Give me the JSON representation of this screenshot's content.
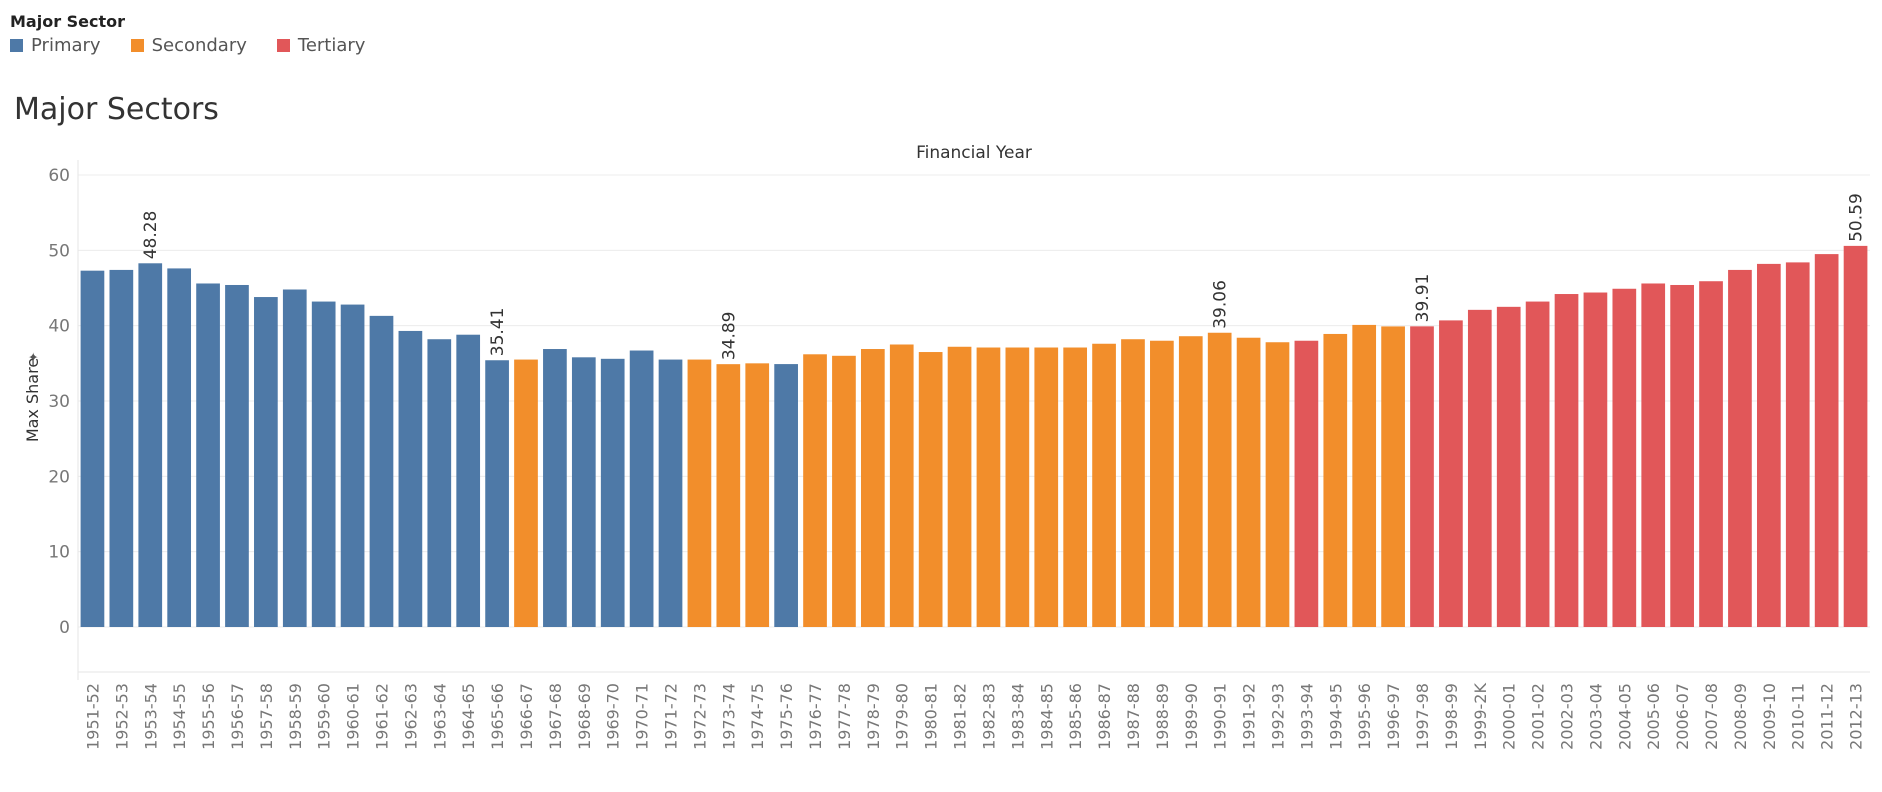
{
  "legend": {
    "title": "Major Sector",
    "items": [
      {
        "label": "Primary",
        "color": "#4e79a7"
      },
      {
        "label": "Secondary",
        "color": "#f28e2b"
      },
      {
        "label": "Tertiary",
        "color": "#e15759"
      }
    ]
  },
  "chart_title": "Major Sectors",
  "chart_data": {
    "type": "bar",
    "title": "Major Sectors",
    "xlabel": "Financial Year",
    "ylabel": "Max Share",
    "ylim": [
      0,
      60
    ],
    "yticks": [
      0,
      10,
      20,
      30,
      40,
      50,
      60
    ],
    "grid": true,
    "legend_position": "top-left",
    "categories": [
      "1951-52",
      "1952-53",
      "1953-54",
      "1954-55",
      "1955-56",
      "1956-57",
      "1957-58",
      "1958-59",
      "1959-60",
      "1960-61",
      "1961-62",
      "1962-63",
      "1963-64",
      "1964-65",
      "1965-66",
      "1966-67",
      "1967-68",
      "1968-69",
      "1969-70",
      "1970-71",
      "1971-72",
      "1972-73",
      "1973-74",
      "1974-75",
      "1975-76",
      "1976-77",
      "1977-78",
      "1978-79",
      "1979-80",
      "1980-81",
      "1981-82",
      "1982-83",
      "1983-84",
      "1984-85",
      "1985-86",
      "1986-87",
      "1987-88",
      "1988-89",
      "1989-90",
      "1990-91",
      "1991-92",
      "1992-93",
      "1993-94",
      "1994-95",
      "1995-96",
      "1996-97",
      "1997-98",
      "1998-99",
      "1999-2K",
      "2000-01",
      "2001-02",
      "2002-03",
      "2003-04",
      "2004-05",
      "2005-06",
      "2006-07",
      "2007-08",
      "2008-09",
      "2009-10",
      "2010-11",
      "2011-12",
      "2012-13"
    ],
    "values": [
      47.3,
      47.4,
      48.28,
      47.6,
      45.6,
      45.4,
      43.8,
      44.8,
      43.2,
      42.8,
      41.3,
      39.3,
      38.2,
      38.8,
      35.41,
      35.5,
      36.9,
      35.8,
      35.6,
      36.7,
      35.5,
      35.5,
      34.89,
      35.0,
      34.9,
      36.2,
      36.0,
      36.9,
      37.5,
      36.5,
      37.2,
      37.1,
      37.1,
      37.1,
      37.1,
      37.6,
      38.2,
      38.0,
      38.6,
      39.06,
      38.4,
      37.8,
      38.0,
      38.9,
      40.1,
      39.9,
      39.91,
      40.7,
      42.1,
      42.5,
      43.2,
      44.2,
      44.4,
      44.9,
      45.6,
      45.4,
      45.9,
      47.4,
      48.2,
      48.4,
      49.5,
      50.59
    ],
    "sectors": [
      "Primary",
      "Primary",
      "Primary",
      "Primary",
      "Primary",
      "Primary",
      "Primary",
      "Primary",
      "Primary",
      "Primary",
      "Primary",
      "Primary",
      "Primary",
      "Primary",
      "Primary",
      "Secondary",
      "Primary",
      "Primary",
      "Primary",
      "Primary",
      "Primary",
      "Secondary",
      "Secondary",
      "Secondary",
      "Primary",
      "Secondary",
      "Secondary",
      "Secondary",
      "Secondary",
      "Secondary",
      "Secondary",
      "Secondary",
      "Secondary",
      "Secondary",
      "Secondary",
      "Secondary",
      "Secondary",
      "Secondary",
      "Secondary",
      "Secondary",
      "Secondary",
      "Secondary",
      "Tertiary",
      "Secondary",
      "Secondary",
      "Secondary",
      "Tertiary",
      "Tertiary",
      "Tertiary",
      "Tertiary",
      "Tertiary",
      "Tertiary",
      "Tertiary",
      "Tertiary",
      "Tertiary",
      "Tertiary",
      "Tertiary",
      "Tertiary",
      "Tertiary",
      "Tertiary",
      "Tertiary",
      "Tertiary"
    ],
    "data_labels": [
      {
        "category": "1953-54",
        "label": "48.28"
      },
      {
        "category": "1965-66",
        "label": "35.41"
      },
      {
        "category": "1973-74",
        "label": "34.89"
      },
      {
        "category": "1990-91",
        "label": "39.06"
      },
      {
        "category": "1997-98",
        "label": "39.91"
      },
      {
        "category": "2012-13",
        "label": "50.59"
      }
    ]
  }
}
